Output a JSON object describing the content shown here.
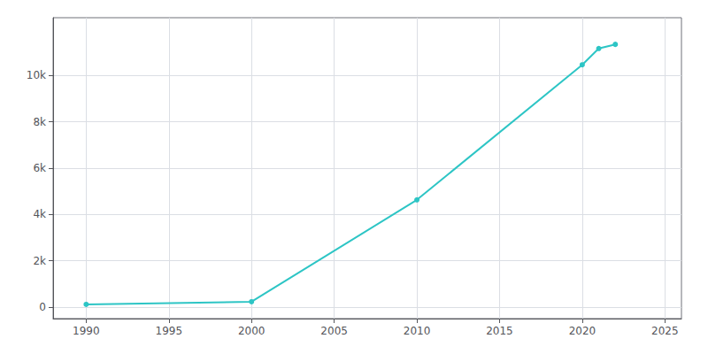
{
  "chart_data": {
    "type": "line",
    "x": [
      1990,
      2000,
      2010,
      2020,
      2021,
      2022
    ],
    "values": [
      114,
      228,
      4630,
      10467,
      11168,
      11347
    ],
    "color": "#2dc5c5",
    "marker": "circle",
    "xlim": [
      1988,
      2026
    ],
    "xticks": [
      1990,
      1995,
      2000,
      2005,
      2010,
      2015,
      2020,
      2025
    ],
    "ylim": [
      -500,
      12500
    ],
    "yticks": [
      0,
      {
        "value": 2000,
        "label": "2k"
      },
      {
        "value": 4000,
        "label": "4k"
      },
      {
        "value": 6000,
        "label": "6k"
      },
      {
        "value": 8000,
        "label": "8k"
      },
      {
        "value": 10000,
        "label": "10k"
      }
    ],
    "grid": true
  }
}
